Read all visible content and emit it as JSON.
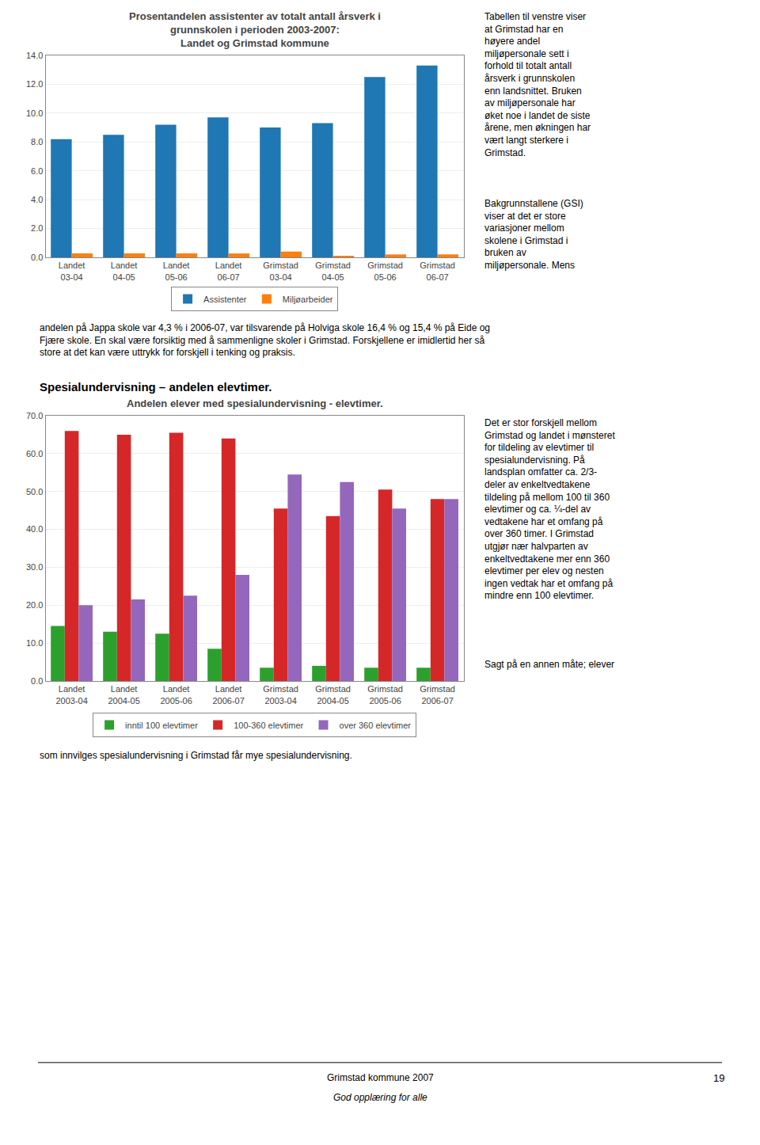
{
  "chart_data": [
    {
      "type": "bar",
      "title": "Prosentandelen assistenter av totalt antall årsverk i\ngrunnskolen i perioden 2003-2007:\nLandet og Grimstad kommune",
      "categories": [
        "Landet\n03-04",
        "Landet\n04-05",
        "Landet\n05-06",
        "Landet\n06-07",
        "Grimstad\n03-04",
        "Grimstad\n04-05",
        "Grimstad\n05-06",
        "Grimstad\n06-07"
      ],
      "series": [
        {
          "name": "Assistenter",
          "values": [
            8.2,
            8.5,
            9.2,
            9.7,
            9.0,
            9.3,
            12.5,
            13.3
          ]
        },
        {
          "name": "Miljøarbeider",
          "values": [
            0.28,
            0.28,
            0.27,
            0.27,
            0.4,
            0.1,
            0.2,
            0.2
          ]
        }
      ],
      "ylim": [
        0,
        14.0
      ],
      "yticks": [
        {
          "value": 0,
          "label": "0.0"
        },
        {
          "value": 2,
          "label": "2.0"
        },
        {
          "value": 4,
          "label": "4.0"
        },
        {
          "value": 6,
          "label": "6.0"
        },
        {
          "value": 8,
          "label": "8.0"
        },
        {
          "value": 10,
          "label": "10.0"
        },
        {
          "value": 12,
          "label": "12.0"
        },
        {
          "value": 14,
          "label": "14.0"
        }
      ],
      "grid": true,
      "legend": "bottom"
    },
    {
      "type": "bar",
      "title": "Andelen elever med spesialundervisning - elevtimer.",
      "categories": [
        "Landet\n2003-04",
        "Landet\n2004-05",
        "Landet\n2005-06",
        "Landet\n2006-07",
        "Grimstad\n2003-04",
        "Grimstad\n2004-05",
        "Grimstad\n2005-06",
        "Grimstad\n2006-07"
      ],
      "series": [
        {
          "name": "inntil 100 elevtimer",
          "values": [
            14.5,
            13.0,
            12.5,
            8.5,
            3.5,
            4.0,
            3.5,
            3.5
          ]
        },
        {
          "name": "100-360 elevtimer",
          "values": [
            66.0,
            65.0,
            65.5,
            64.0,
            45.5,
            43.5,
            50.5,
            48.0
          ]
        },
        {
          "name": "over 360 elevtimer",
          "values": [
            20.0,
            21.5,
            22.5,
            28.0,
            54.5,
            52.5,
            45.5,
            48.0
          ]
        }
      ],
      "ylim": [
        0,
        70.0
      ],
      "yticks": [
        {
          "value": 0,
          "label": "0.0"
        },
        {
          "value": 10,
          "label": "10.0"
        },
        {
          "value": 20,
          "label": "20.0"
        },
        {
          "value": 30,
          "label": "30.0"
        },
        {
          "value": 40,
          "label": "40.0"
        },
        {
          "value": 50,
          "label": "50.0"
        },
        {
          "value": 60,
          "label": "60.0"
        },
        {
          "value": 70,
          "label": "70.0"
        }
      ],
      "grid": true,
      "legend": "bottom"
    }
  ],
  "annotations": [
    "Tabellen til venstre viser\nat Grimstad har en\nhøyere andel\nmiljøpersonale sett i\nforhold til totalt antall\nårsverk i grunnskolen\nenn landsnittet. Bruken\nav miljøpersonale har\nøket noe i landet de siste\nårene, men økningen har\nvært langt sterkere i\nGrimstad.",
    "Bakgrunnstallene (GSI)\nviser at det er store\nvariasjoner mellom\nskolene i Grimstad i\nbruken av\nmiljøpersonale. Mens",
    "andelen på Jappa skole var 4,3 % i 2006-07, var tilsvarende på Holviga skole 16,4 % og 15,4 % på Eide og\nFjære skole. En skal være forsiktig med å sammenligne skoler i Grimstad. Forskjellene er imidlertid her så\nstore at det kan være uttrykk for forskjell i tenking og praksis.",
    "Spesialundervisning – andelen elevtimer.",
    "Det er stor forskjell mellom\nGrimstad og landet i mønsteret\nfor tildeling av elevtimer til\nspesialundervisning. På\nlandsplan omfatter ca. 2/3-\ndeler av enkeltvedtakene\ntildeling på mellom 100 til 360\nelevtimer og ca. ¼-del av\nvedtakene har et omfang på\nover 360 timer. I Grimstad\nutgjør nær halvparten av\nenkeltvedtakene mer enn 360\nelevtimer per elev og nesten\ningen vedtak har et omfang på\nmindre enn 100 elevtimer.",
    "Sagt på en annen måte; elever",
    "som innvilges spesialundervisning i Grimstad får mye spesialundervisning.",
    "Grimstad kommune 2007",
    "God opplæring for alle",
    "19"
  ]
}
